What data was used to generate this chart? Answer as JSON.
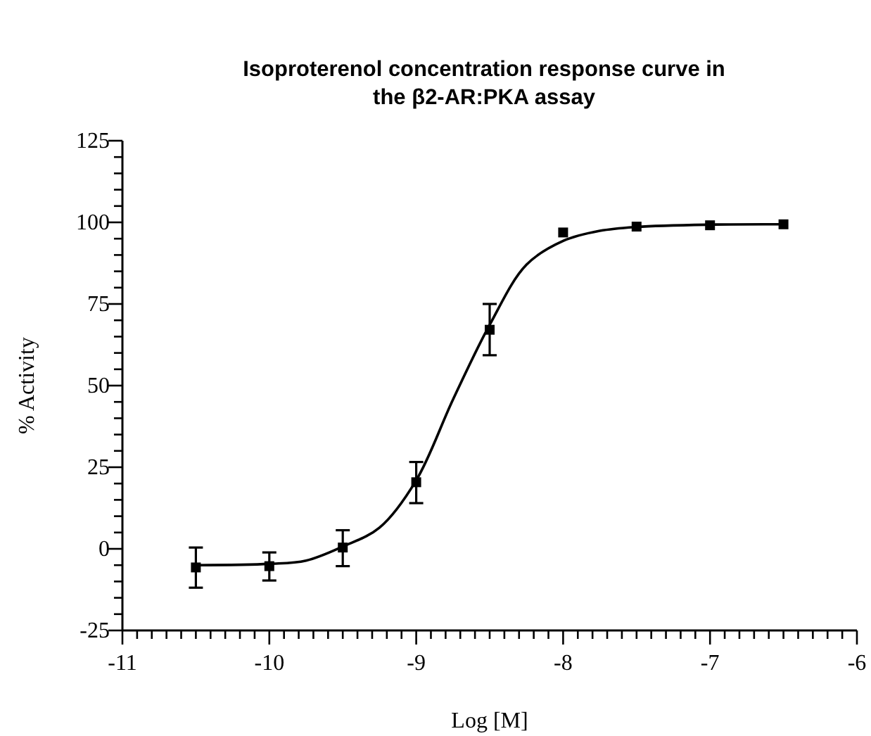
{
  "chart_data": {
    "type": "scatter",
    "title": "Isoproterenol concentration response curve in\nthe β2-AR:PKA assay",
    "xlabel": "Log [M]",
    "ylabel": "% Activity",
    "xlim": [
      -11,
      -6
    ],
    "ylim": [
      -25,
      125
    ],
    "xticks": [
      -11,
      {
        "value": -10.9,
        "label": null
      },
      {
        "value": -10.8,
        "label": null
      },
      {
        "value": -10.7,
        "label": null
      },
      {
        "value": -10.6,
        "label": null
      },
      {
        "value": -10.5,
        "label": null
      },
      {
        "value": -10.4,
        "label": null
      },
      {
        "value": -10.3,
        "label": null
      },
      {
        "value": -10.2,
        "label": null
      },
      {
        "value": -10.1,
        "label": null
      },
      -10,
      {
        "value": -9.9,
        "label": null
      },
      {
        "value": -9.8,
        "label": null
      },
      {
        "value": -9.7,
        "label": null
      },
      {
        "value": -9.6,
        "label": null
      },
      {
        "value": -9.5,
        "label": null
      },
      {
        "value": -9.4,
        "label": null
      },
      {
        "value": -9.3,
        "label": null
      },
      {
        "value": -9.2,
        "label": null
      },
      {
        "value": -9.1,
        "label": null
      },
      -9,
      {
        "value": -8.9,
        "label": null
      },
      {
        "value": -8.8,
        "label": null
      },
      {
        "value": -8.7,
        "label": null
      },
      {
        "value": -8.6,
        "label": null
      },
      {
        "value": -8.5,
        "label": null
      },
      {
        "value": -8.4,
        "label": null
      },
      {
        "value": -8.3,
        "label": null
      },
      {
        "value": -8.2,
        "label": null
      },
      {
        "value": -8.1,
        "label": null
      },
      -8,
      {
        "value": -7.9,
        "label": null
      },
      {
        "value": -7.8,
        "label": null
      },
      {
        "value": -7.7,
        "label": null
      },
      {
        "value": -7.6,
        "label": null
      },
      {
        "value": -7.5,
        "label": null
      },
      {
        "value": -7.4,
        "label": null
      },
      {
        "value": -7.3,
        "label": null
      },
      {
        "value": -7.2,
        "label": null
      },
      {
        "value": -7.1,
        "label": null
      },
      -7,
      {
        "value": -6.9,
        "label": null
      },
      {
        "value": -6.8,
        "label": null
      },
      {
        "value": -6.7,
        "label": null
      },
      {
        "value": -6.6,
        "label": null
      },
      {
        "value": -6.5,
        "label": null
      },
      {
        "value": -6.4,
        "label": null
      },
      {
        "value": -6.3,
        "label": null
      },
      {
        "value": -6.2,
        "label": null
      },
      {
        "value": -6.1,
        "label": null
      },
      -6
    ],
    "yticks": [
      -25,
      {
        "value": -20,
        "label": null
      },
      {
        "value": -15,
        "label": null
      },
      {
        "value": -10,
        "label": null
      },
      {
        "value": -5,
        "label": null
      },
      0,
      {
        "value": 5,
        "label": null
      },
      {
        "value": 10,
        "label": null
      },
      {
        "value": 15,
        "label": null
      },
      {
        "value": 20,
        "label": null
      },
      25,
      {
        "value": 30,
        "label": null
      },
      {
        "value": 35,
        "label": null
      },
      {
        "value": 40,
        "label": null
      },
      {
        "value": 45,
        "label": null
      },
      50,
      {
        "value": 55,
        "label": null
      },
      {
        "value": 60,
        "label": null
      },
      {
        "value": 65,
        "label": null
      },
      {
        "value": 70,
        "label": null
      },
      75,
      {
        "value": 80,
        "label": null
      },
      {
        "value": 85,
        "label": null
      },
      {
        "value": 90,
        "label": null
      },
      {
        "value": 95,
        "label": null
      },
      100,
      {
        "value": 105,
        "label": null
      },
      {
        "value": 110,
        "label": null
      },
      {
        "value": 115,
        "label": null
      },
      {
        "value": 120,
        "label": null
      },
      125
    ],
    "grid": false,
    "series": [
      {
        "type": "line",
        "color": "#000000",
        "marker": "none",
        "line_style": "solid",
        "x": [
          -10.5,
          -10,
          -9.75,
          -9.5,
          -9.25,
          -9,
          -8.75,
          -8.5,
          -8.25,
          -8,
          -7.75,
          -7.5,
          -7,
          -6.5
        ],
        "values": [
          -5,
          -4.6,
          -3.6,
          0.7,
          6.5,
          21,
          45.7,
          68.6,
          87,
          94.3,
          97.4,
          98.6,
          99.3,
          99.4
        ]
      },
      {
        "color": "#000000",
        "marker": "square",
        "x": [
          -10.5,
          -10,
          -9.5,
          -9,
          -8.5,
          -8,
          -7.5,
          -7,
          -6.5
        ],
        "values": [
          -5.7,
          -5.3,
          0.4,
          20.4,
          67.1,
          96.9,
          98.7,
          99.1,
          99.4
        ],
        "errors": [
          [
            -11.9,
            0.4
          ],
          [
            -9.7,
            -1.1
          ],
          [
            -5.3,
            5.7
          ],
          [
            14,
            26.6
          ],
          [
            59.3,
            75
          ],
          null,
          null,
          null,
          null
        ]
      }
    ]
  }
}
